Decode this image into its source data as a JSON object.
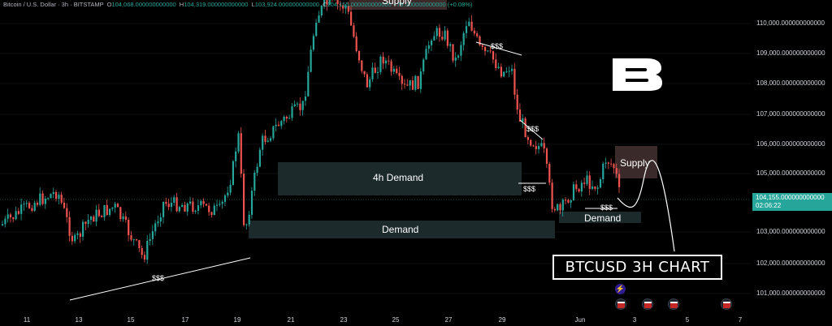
{
  "header": {
    "symbol": "Bitcoin / U.S. Dollar · 3h · BITSTAMP",
    "open_key": "O",
    "open": "104,068.000000000000",
    "high_key": "H",
    "high": "104,319.000000000000",
    "low_key": "L",
    "low": "103,924.000000000000",
    "close_key": "C",
    "close": "104,155.000000000000",
    "change": "+79.000000000000 (+0.08%)"
  },
  "price_axis": {
    "labels": [
      "110,000.000000000000",
      "109,000.000000000000",
      "108,000.000000000000",
      "107,000.000000000000",
      "106,000.000000000000",
      "105,000.000000000000",
      "103,000.000000000000",
      "102,000.000000000000",
      "101,000.000000000000"
    ],
    "current_price": "104,155.000000000000",
    "countdown": "02:06:22"
  },
  "time_axis": {
    "labels": [
      "11",
      "13",
      "15",
      "17",
      "19",
      "21",
      "23",
      "25",
      "27",
      "29",
      "Jun",
      "3",
      "5",
      "7"
    ]
  },
  "annotations": {
    "supply_top": "Supply",
    "supply_right": "Supply",
    "demand_4h": "4h Demand",
    "demand_main": "Demand",
    "demand_right": "Demand",
    "liquidity": "$$$",
    "title": "BTCUSD 3H CHART"
  },
  "colors": {
    "bull": "#26a69a",
    "bear": "#ef5350",
    "zone": "#1c2a2c",
    "supply": "#3b2a2a",
    "accent": "#26a69a"
  },
  "icons": [
    "brand-logo-icon",
    "lightning-icon",
    "us-flag-icon"
  ]
}
